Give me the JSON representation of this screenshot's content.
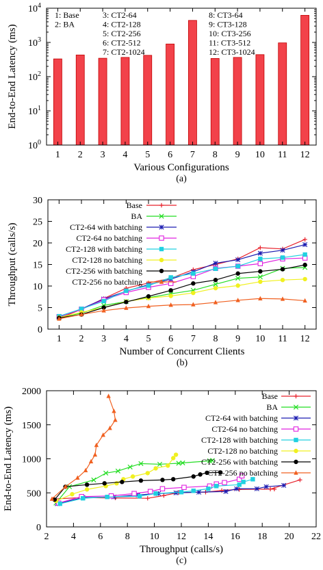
{
  "chart_data": [
    {
      "id": "a",
      "type": "bar",
      "caption": "(a)",
      "xlabel": "Various Configurations",
      "ylabel": "End-to-End Latency (ms)",
      "yscale": "log",
      "ylim": [
        1,
        10000
      ],
      "yticks": [
        {
          "value": 1,
          "base": "10",
          "exp": "0"
        },
        {
          "value": 10,
          "base": "10",
          "exp": "1"
        },
        {
          "value": 100,
          "base": "10",
          "exp": "2"
        },
        {
          "value": 1000,
          "base": "10",
          "exp": "3"
        },
        {
          "value": 10000,
          "base": "10",
          "exp": "4"
        }
      ],
      "categories": [
        "1",
        "2",
        "3",
        "4",
        "5",
        "6",
        "7",
        "8",
        "9",
        "10",
        "11",
        "12"
      ],
      "values": [
        330,
        430,
        345,
        365,
        420,
        900,
        4400,
        340,
        365,
        440,
        970,
        6200
      ],
      "bar_color": "#f2424a",
      "legend_labels": [
        [
          "1: Base",
          "2: BA"
        ],
        [
          "3: CT2-64",
          "4: CT2-128",
          "5: CT2-256",
          "6: CT2-512",
          "7: CT2-1024"
        ],
        [
          "8: CT3-64",
          "9: CT3-128",
          "10: CT3-256",
          "11: CT3-512",
          "12: CT3-1024"
        ]
      ],
      "grid": false
    },
    {
      "id": "b",
      "type": "line",
      "caption": "(b)",
      "xlabel": "Number of Concurrent Clients",
      "ylabel": "Throughput (calls/s)",
      "xlim": [
        0.5,
        12.5
      ],
      "ylim": [
        0,
        30
      ],
      "xticks": [
        1,
        2,
        3,
        4,
        5,
        6,
        7,
        8,
        9,
        10,
        11,
        12
      ],
      "yticks": [
        0,
        5,
        10,
        15,
        20,
        25,
        30
      ],
      "x": [
        1,
        2,
        3,
        4,
        5,
        6,
        7,
        8,
        9,
        10,
        11,
        12
      ],
      "legend_position": "top-left",
      "series": [
        {
          "name": "Base",
          "color": "#e8202a",
          "marker": "plus",
          "values": [
            2.5,
            4.6,
            7.1,
            9.5,
            10.7,
            11.8,
            13.8,
            15.0,
            16.3,
            18.9,
            18.6,
            20.8
          ]
        },
        {
          "name": "BA",
          "color": "#22dd22",
          "marker": "cross",
          "values": [
            2.7,
            3.7,
            5.5,
            6.4,
            7.3,
            8.2,
            9.0,
            10.4,
            11.8,
            12.1,
            14.1,
            14.3
          ]
        },
        {
          "name": "CT2-64 with batching",
          "color": "#1a1ab0",
          "marker": "star",
          "values": [
            2.8,
            4.7,
            7.0,
            8.8,
            10.3,
            11.6,
            13.3,
            15.3,
            16.1,
            17.6,
            18.3,
            19.6
          ]
        },
        {
          "name": "CT2-64 no batching",
          "color": "#e020e0",
          "marker": "square",
          "values": [
            2.9,
            4.6,
            6.8,
            8.5,
            9.7,
            10.6,
            12.2,
            14.1,
            14.6,
            15.2,
            16.3,
            16.5
          ]
        },
        {
          "name": "CT2-128 with batching",
          "color": "#20d0e0",
          "marker": "filled-square",
          "values": [
            3.0,
            4.7,
            6.5,
            8.9,
            10.1,
            12.0,
            12.9,
            14.0,
            14.6,
            16.3,
            16.6,
            17.3
          ]
        },
        {
          "name": "CT2-128 no batching",
          "color": "#f0f020",
          "marker": "filled-circle",
          "values": [
            2.7,
            3.9,
            5.0,
            6.4,
            7.2,
            7.7,
            8.4,
            9.5,
            10.1,
            11.0,
            11.4,
            11.6
          ]
        },
        {
          "name": "CT2-256 with batching",
          "color": "#000000",
          "marker": "filled-circle",
          "values": [
            2.6,
            3.4,
            5.0,
            6.3,
            7.6,
            9.0,
            10.6,
            11.4,
            12.9,
            13.4,
            13.9,
            14.9
          ]
        },
        {
          "name": "CT2-256 no batching",
          "color": "#f06020",
          "marker": "triangle",
          "values": [
            2.4,
            3.4,
            4.3,
            4.9,
            5.3,
            5.6,
            5.7,
            6.2,
            6.7,
            7.1,
            7.0,
            6.6
          ]
        }
      ],
      "grid": false
    },
    {
      "id": "c",
      "type": "line",
      "caption": "(c)",
      "xlabel": "Throughput (calls/s)",
      "ylabel": "End-to-End Latency (ms)",
      "xlim": [
        2,
        22
      ],
      "ylim": [
        0,
        2000
      ],
      "xticks": [
        2,
        4,
        6,
        8,
        10,
        12,
        14,
        16,
        18,
        20,
        22
      ],
      "yticks": [
        0,
        500,
        1000,
        1500,
        2000
      ],
      "legend_position": "top-right",
      "series": [
        {
          "name": "Base",
          "color": "#e8202a",
          "marker": "plus",
          "x": [
            2.5,
            4.6,
            7.1,
            9.5,
            10.7,
            11.8,
            13.8,
            15.0,
            16.3,
            18.9,
            18.6,
            20.8
          ],
          "y": [
            410,
            430,
            425,
            420,
            460,
            505,
            510,
            535,
            550,
            555,
            555,
            690
          ]
        },
        {
          "name": "BA",
          "color": "#22dd22",
          "marker": "cross",
          "x": [
            2.7,
            3.7,
            5.5,
            6.4,
            7.3,
            8.2,
            9.0,
            10.4,
            11.8,
            12.1,
            14.1,
            14.3
          ],
          "y": [
            350,
            590,
            690,
            790,
            820,
            880,
            930,
            920,
            935,
            940,
            970,
            975
          ]
        },
        {
          "name": "CT2-64 with batching",
          "color": "#1a1ab0",
          "marker": "star",
          "x": [
            2.8,
            4.7,
            7.0,
            8.8,
            10.3,
            11.6,
            13.3,
            15.3,
            16.1,
            17.6,
            18.3,
            19.6
          ],
          "y": [
            340,
            430,
            440,
            470,
            490,
            500,
            510,
            520,
            560,
            560,
            590,
            610
          ]
        },
        {
          "name": "CT2-64 no batching",
          "color": "#e020e0",
          "marker": "square",
          "x": [
            2.9,
            4.6,
            6.8,
            8.5,
            9.7,
            10.6,
            12.2,
            14.1,
            14.6,
            15.2,
            16.3,
            16.5
          ],
          "y": [
            350,
            445,
            455,
            490,
            520,
            560,
            580,
            600,
            630,
            650,
            700,
            750
          ]
        },
        {
          "name": "CT2-128 with batching",
          "color": "#20d0e0",
          "marker": "filled-square",
          "x": [
            3.0,
            4.7,
            6.5,
            8.9,
            10.1,
            12.0,
            12.9,
            14.0,
            14.6,
            16.3,
            16.6,
            17.3
          ],
          "y": [
            340,
            420,
            440,
            450,
            490,
            510,
            530,
            560,
            600,
            620,
            660,
            700
          ]
        },
        {
          "name": "CT2-128 no batching",
          "color": "#f0f020",
          "marker": "filled-circle",
          "x": [
            2.7,
            3.9,
            5.0,
            6.4,
            7.2,
            7.7,
            8.4,
            9.5,
            10.1,
            11.0,
            11.4,
            11.6
          ],
          "y": [
            380,
            480,
            550,
            600,
            640,
            700,
            740,
            790,
            860,
            900,
            1010,
            1060
          ]
        },
        {
          "name": "CT2-256 with batching",
          "color": "#000000",
          "marker": "filled-circle",
          "x": [
            2.6,
            3.4,
            5.0,
            6.3,
            7.6,
            9.0,
            10.6,
            11.4,
            12.9,
            13.4,
            13.9,
            14.9
          ],
          "y": [
            400,
            590,
            620,
            640,
            660,
            680,
            690,
            700,
            740,
            770,
            795,
            800
          ]
        },
        {
          "name": "CT2-256 no batching",
          "color": "#f06020",
          "marker": "triangle",
          "x": [
            2.4,
            3.4,
            4.3,
            4.9,
            5.3,
            5.6,
            5.7,
            6.2,
            6.7,
            7.1,
            7.0,
            6.6
          ],
          "y": [
            410,
            590,
            720,
            830,
            960,
            1060,
            1200,
            1350,
            1450,
            1570,
            1700,
            1920
          ]
        }
      ],
      "grid": false
    }
  ]
}
